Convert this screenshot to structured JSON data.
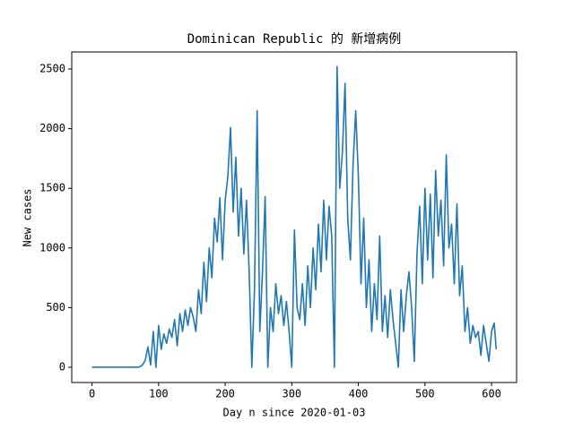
{
  "chart_data": {
    "type": "line",
    "title": "Dominican Republic 的 新增病例",
    "x_label": "Day n since 2020-01-03",
    "y_label": "New cases",
    "xlim": [
      -30.4,
      637.6
    ],
    "ylim": [
      -128,
      2643
    ],
    "xticks": [
      0,
      100,
      200,
      300,
      400,
      500,
      600
    ],
    "yticks": [
      0,
      500,
      1000,
      1500,
      2000,
      2500
    ],
    "x": [
      0,
      4,
      8,
      12,
      16,
      20,
      24,
      28,
      32,
      36,
      40,
      44,
      48,
      52,
      56,
      60,
      64,
      68,
      72,
      76,
      80,
      84,
      88,
      92,
      96,
      100,
      104,
      108,
      112,
      116,
      120,
      124,
      128,
      132,
      136,
      140,
      144,
      148,
      152,
      156,
      160,
      164,
      168,
      172,
      176,
      180,
      184,
      188,
      192,
      196,
      200,
      204,
      208,
      212,
      216,
      220,
      224,
      228,
      232,
      236,
      240,
      244,
      248,
      252,
      256,
      260,
      264,
      268,
      272,
      276,
      280,
      284,
      288,
      292,
      296,
      300,
      304,
      308,
      312,
      316,
      320,
      324,
      328,
      332,
      336,
      340,
      344,
      348,
      352,
      356,
      360,
      364,
      368,
      372,
      376,
      380,
      384,
      388,
      392,
      396,
      400,
      404,
      408,
      412,
      416,
      420,
      424,
      428,
      432,
      436,
      440,
      444,
      448,
      452,
      456,
      460,
      464,
      468,
      472,
      476,
      480,
      484,
      488,
      492,
      496,
      500,
      504,
      508,
      512,
      516,
      520,
      524,
      528,
      532,
      536,
      540,
      544,
      548,
      552,
      556,
      560,
      564,
      568,
      572,
      576,
      580,
      584,
      588,
      592,
      596,
      600,
      604,
      607
    ],
    "series": [
      {
        "name": "New cases",
        "color": "#1f77b4",
        "values": [
          0,
          0,
          0,
          0,
          0,
          0,
          0,
          0,
          0,
          0,
          0,
          0,
          0,
          0,
          0,
          0,
          0,
          0,
          5,
          20,
          60,
          170,
          20,
          300,
          0,
          350,
          150,
          280,
          200,
          320,
          250,
          400,
          180,
          450,
          300,
          480,
          350,
          500,
          420,
          300,
          650,
          450,
          880,
          550,
          1000,
          750,
          1250,
          1050,
          1420,
          900,
          1400,
          1600,
          2010,
          1300,
          1760,
          1100,
          1500,
          950,
          1400,
          800,
          0,
          650,
          2150,
          300,
          800,
          1430,
          0,
          500,
          300,
          700,
          450,
          600,
          350,
          550,
          300,
          0,
          1150,
          500,
          400,
          700,
          350,
          850,
          500,
          1000,
          650,
          1200,
          800,
          1400,
          900,
          1350,
          1100,
          0,
          2520,
          1500,
          1800,
          2380,
          1250,
          900,
          1700,
          2150,
          1600,
          700,
          1250,
          500,
          900,
          300,
          700,
          400,
          1100,
          300,
          600,
          250,
          650,
          400,
          200,
          0,
          650,
          300,
          600,
          800,
          500,
          50,
          950,
          1350,
          700,
          1500,
          900,
          1450,
          750,
          1650,
          1100,
          1400,
          850,
          1780,
          1000,
          1200,
          700,
          1370,
          600,
          850,
          300,
          500,
          200,
          350,
          250,
          300,
          100,
          350,
          200,
          50,
          300,
          370,
          150
        ]
      }
    ]
  }
}
